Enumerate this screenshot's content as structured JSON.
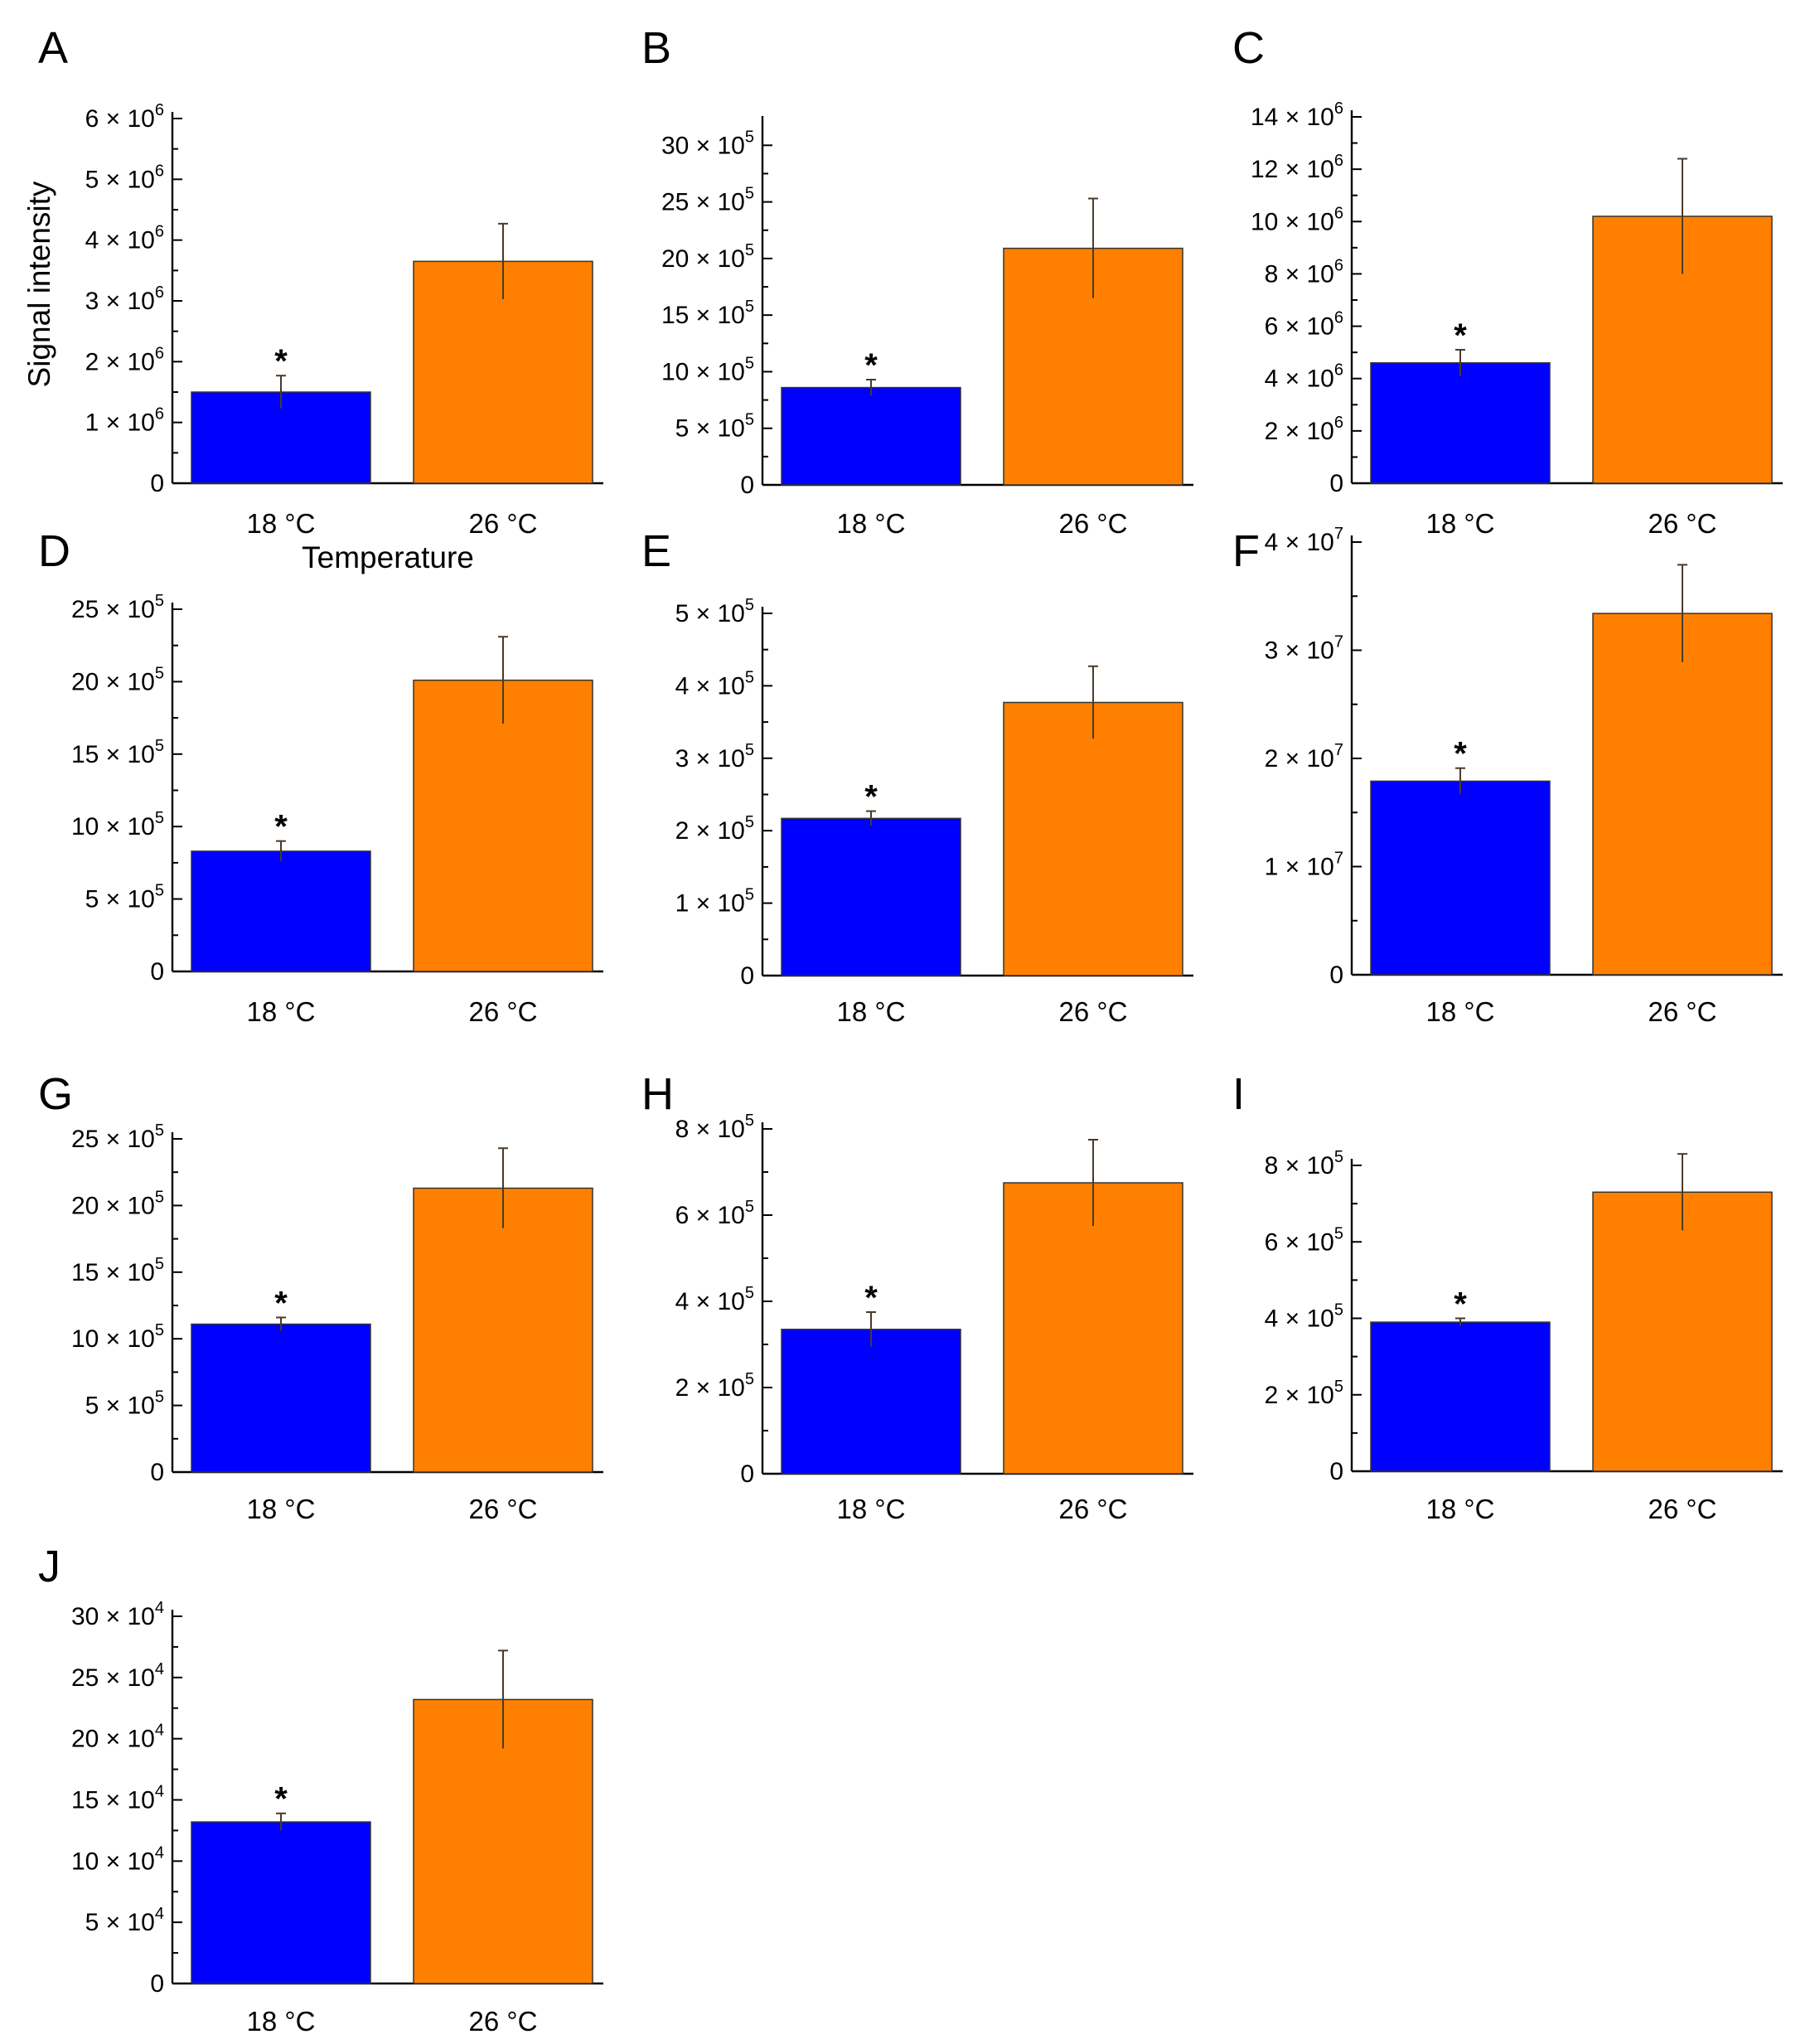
{
  "colors": {
    "bar_18": "#0000ff",
    "bar_26": "#ff8000",
    "axis": "#000000",
    "errorbar": "#4a3a2a"
  },
  "chart_data": [
    {
      "type": "bar",
      "panel": "A",
      "categories": [
        "18 °C",
        "26 °C"
      ],
      "values": [
        1500000,
        3650000
      ],
      "errors": [
        270000,
        620000
      ],
      "ylim": [
        0,
        6000000
      ],
      "yticks": [
        {
          "v": 0,
          "m": "0",
          "e": ""
        },
        {
          "v": 1000000,
          "m": "1 × 10",
          "e": "6"
        },
        {
          "v": 2000000,
          "m": "2 × 10",
          "e": "6"
        },
        {
          "v": 3000000,
          "m": "3 × 10",
          "e": "6"
        },
        {
          "v": 4000000,
          "m": "4 × 10",
          "e": "6"
        },
        {
          "v": 5000000,
          "m": "5 × 10",
          "e": "6"
        },
        {
          "v": 6000000,
          "m": "6 × 10",
          "e": "6"
        }
      ],
      "ylabel": "Signal intensity",
      "xlabel": "Temperature",
      "annotations": [
        "*"
      ]
    },
    {
      "type": "bar",
      "panel": "B",
      "categories": [
        "18 °C",
        "26 °C"
      ],
      "values": [
        860000,
        2090000
      ],
      "errors": [
        70000,
        440000
      ],
      "ylim": [
        0,
        3200000
      ],
      "yticks": [
        {
          "v": 0,
          "m": "0",
          "e": ""
        },
        {
          "v": 500000,
          "m": "5 × 10",
          "e": "5"
        },
        {
          "v": 1000000,
          "m": "10 × 10",
          "e": "5"
        },
        {
          "v": 1500000,
          "m": "15 × 10",
          "e": "5"
        },
        {
          "v": 2000000,
          "m": "20 × 10",
          "e": "5"
        },
        {
          "v": 2500000,
          "m": "25 × 10",
          "e": "5"
        },
        {
          "v": 3000000,
          "m": "30 × 10",
          "e": "5"
        }
      ],
      "ylabel": "",
      "xlabel": "",
      "annotations": [
        "*"
      ]
    },
    {
      "type": "bar",
      "panel": "C",
      "categories": [
        "18 °C",
        "26 °C"
      ],
      "values": [
        4600000,
        10200000
      ],
      "errors": [
        500000,
        2200000
      ],
      "ylim": [
        0,
        14000000
      ],
      "yticks": [
        {
          "v": 0,
          "m": "0",
          "e": ""
        },
        {
          "v": 2000000,
          "m": "2 × 10",
          "e": "6"
        },
        {
          "v": 4000000,
          "m": "4 × 10",
          "e": "6"
        },
        {
          "v": 6000000,
          "m": "6 × 10",
          "e": "6"
        },
        {
          "v": 8000000,
          "m": "8 × 10",
          "e": "6"
        },
        {
          "v": 10000000,
          "m": "10 × 10",
          "e": "6"
        },
        {
          "v": 12000000,
          "m": "12 × 10",
          "e": "6"
        },
        {
          "v": 14000000,
          "m": "14 × 10",
          "e": "6"
        }
      ],
      "ylabel": "",
      "xlabel": "",
      "annotations": [
        "*"
      ]
    },
    {
      "type": "bar",
      "panel": "D",
      "categories": [
        "18 °C",
        "26 °C"
      ],
      "values": [
        830000,
        2010000
      ],
      "errors": [
        70000,
        300000
      ],
      "ylim": [
        0,
        2500000
      ],
      "yticks": [
        {
          "v": 0,
          "m": "0",
          "e": ""
        },
        {
          "v": 500000,
          "m": "5 × 10",
          "e": "5"
        },
        {
          "v": 1000000,
          "m": "10 × 10",
          "e": "5"
        },
        {
          "v": 1500000,
          "m": "15 × 10",
          "e": "5"
        },
        {
          "v": 2000000,
          "m": "20 × 10",
          "e": "5"
        },
        {
          "v": 2500000,
          "m": "25 × 10",
          "e": "5"
        }
      ],
      "ylabel": "",
      "xlabel": "",
      "annotations": [
        "*"
      ]
    },
    {
      "type": "bar",
      "panel": "E",
      "categories": [
        "18 °C",
        "26 °C"
      ],
      "values": [
        217000,
        377000
      ],
      "errors": [
        10000,
        50000
      ],
      "ylim": [
        0,
        500000
      ],
      "yticks": [
        {
          "v": 0,
          "m": "0",
          "e": ""
        },
        {
          "v": 100000,
          "m": "1 × 10",
          "e": "5"
        },
        {
          "v": 200000,
          "m": "2 × 10",
          "e": "5"
        },
        {
          "v": 300000,
          "m": "3 × 10",
          "e": "5"
        },
        {
          "v": 400000,
          "m": "4 × 10",
          "e": "5"
        },
        {
          "v": 500000,
          "m": "5 × 10",
          "e": "5"
        }
      ],
      "ylabel": "",
      "xlabel": "",
      "annotations": [
        "*"
      ]
    },
    {
      "type": "bar",
      "panel": "F",
      "categories": [
        "18 °C",
        "26 °C"
      ],
      "values": [
        17900000,
        33400000
      ],
      "errors": [
        1200000,
        4500000
      ],
      "ylim": [
        0,
        40000000
      ],
      "yticks": [
        {
          "v": 0,
          "m": "0",
          "e": ""
        },
        {
          "v": 10000000,
          "m": "1 × 10",
          "e": "7"
        },
        {
          "v": 20000000,
          "m": "2 × 10",
          "e": "7"
        },
        {
          "v": 30000000,
          "m": "3 × 10",
          "e": "7"
        },
        {
          "v": 40000000,
          "m": "4 × 10",
          "e": "7"
        }
      ],
      "ylabel": "",
      "xlabel": "",
      "annotations": [
        "*"
      ]
    },
    {
      "type": "bar",
      "panel": "G",
      "categories": [
        "18 °C",
        "26 °C"
      ],
      "values": [
        1110000,
        2130000
      ],
      "errors": [
        50000,
        300000
      ],
      "ylim": [
        0,
        2500000
      ],
      "yticks": [
        {
          "v": 0,
          "m": "0",
          "e": ""
        },
        {
          "v": 500000,
          "m": "5 × 10",
          "e": "5"
        },
        {
          "v": 1000000,
          "m": "10 × 10",
          "e": "5"
        },
        {
          "v": 1500000,
          "m": "15 × 10",
          "e": "5"
        },
        {
          "v": 2000000,
          "m": "20 × 10",
          "e": "5"
        },
        {
          "v": 2500000,
          "m": "25 × 10",
          "e": "5"
        }
      ],
      "ylabel": "",
      "xlabel": "",
      "annotations": [
        "*"
      ]
    },
    {
      "type": "bar",
      "panel": "H",
      "categories": [
        "18 °C",
        "26 °C"
      ],
      "values": [
        335000,
        675000
      ],
      "errors": [
        40000,
        100000
      ],
      "ylim": [
        0,
        800000
      ],
      "yticks": [
        {
          "v": 0,
          "m": "0",
          "e": ""
        },
        {
          "v": 200000,
          "m": "2 × 10",
          "e": "5"
        },
        {
          "v": 400000,
          "m": "4 × 10",
          "e": "5"
        },
        {
          "v": 600000,
          "m": "6 × 10",
          "e": "5"
        },
        {
          "v": 800000,
          "m": "8 × 10",
          "e": "5"
        }
      ],
      "ylabel": "",
      "xlabel": "",
      "annotations": [
        "*"
      ]
    },
    {
      "type": "bar",
      "panel": "I",
      "categories": [
        "18 °C",
        "26 °C"
      ],
      "values": [
        390000,
        730000
      ],
      "errors": [
        10000,
        100000
      ],
      "ylim": [
        0,
        800000
      ],
      "yticks": [
        {
          "v": 0,
          "m": "0",
          "e": ""
        },
        {
          "v": 200000,
          "m": "2 × 10",
          "e": "5"
        },
        {
          "v": 400000,
          "m": "4 × 10",
          "e": "5"
        },
        {
          "v": 600000,
          "m": "6 × 10",
          "e": "5"
        },
        {
          "v": 800000,
          "m": "8 × 10",
          "e": "5"
        }
      ],
      "ylabel": "",
      "xlabel": "",
      "annotations": [
        "*"
      ]
    },
    {
      "type": "bar",
      "panel": "J",
      "categories": [
        "18 °C",
        "26 °C"
      ],
      "values": [
        132000,
        232000
      ],
      "errors": [
        7000,
        40000
      ],
      "ylim": [
        0,
        300000
      ],
      "yticks": [
        {
          "v": 0,
          "m": "0",
          "e": ""
        },
        {
          "v": 50000,
          "m": "5 × 10",
          "e": "4"
        },
        {
          "v": 100000,
          "m": "10 × 10",
          "e": "4"
        },
        {
          "v": 150000,
          "m": "15 × 10",
          "e": "4"
        },
        {
          "v": 200000,
          "m": "20 × 10",
          "e": "4"
        },
        {
          "v": 250000,
          "m": "25 × 10",
          "e": "4"
        },
        {
          "v": 300000,
          "m": "30 × 10",
          "e": "4"
        }
      ],
      "ylabel": "",
      "xlabel": "",
      "annotations": [
        "*"
      ]
    }
  ]
}
